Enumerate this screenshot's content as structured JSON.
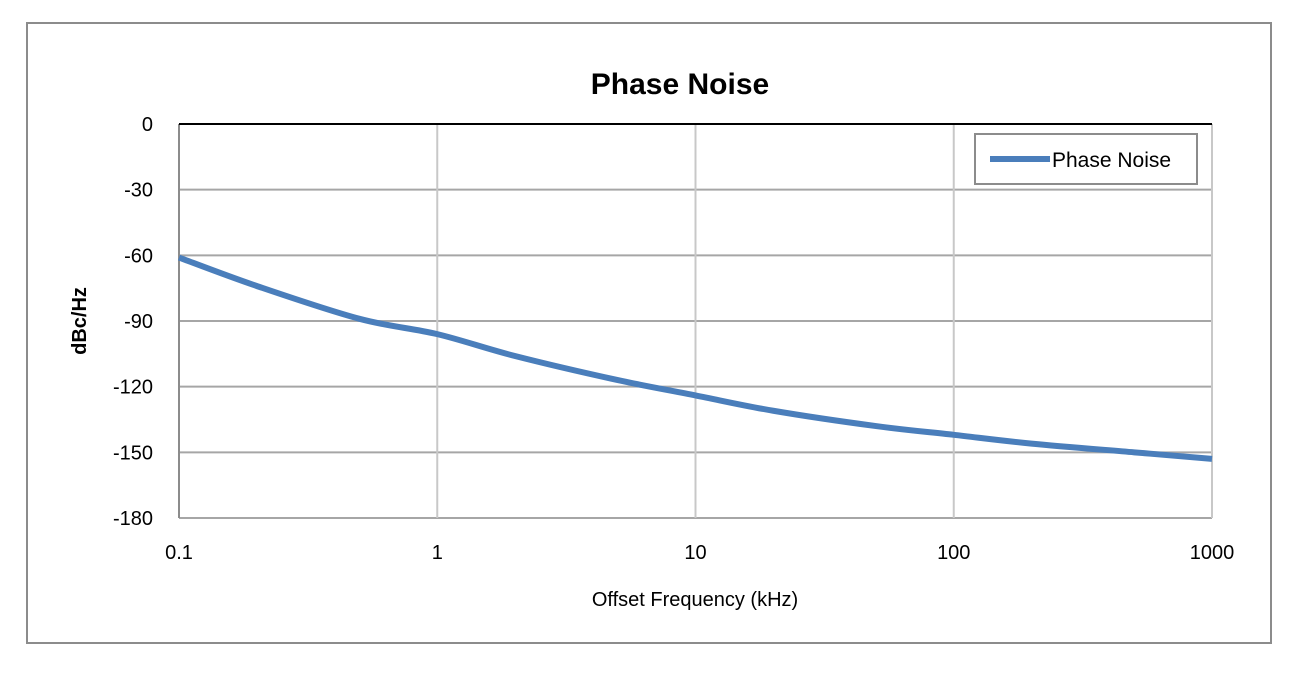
{
  "chart_data": {
    "type": "line",
    "title": "Phase Noise",
    "xlabel": "Offset Frequency (kHz)",
    "ylabel": "dBc/Hz",
    "x_scale": "log",
    "xlim": [
      0.1,
      1000
    ],
    "ylim": [
      -180,
      0
    ],
    "x_ticks": [
      "0.1",
      "1",
      "10",
      "100",
      "1000"
    ],
    "y_ticks": [
      "0",
      "-30",
      "-60",
      "-90",
      "-120",
      "-150",
      "-180"
    ],
    "grid": true,
    "legend_position": "top-right",
    "series": [
      {
        "name": "Phase Noise",
        "color": "#4a7ebb",
        "x": [
          0.1,
          0.2,
          0.5,
          1,
          2,
          5,
          10,
          20,
          50,
          100,
          200,
          500,
          1000
        ],
        "y": [
          -61,
          -74,
          -89,
          -96,
          -106,
          -117,
          -124,
          -131,
          -138,
          -142,
          -146,
          -150,
          -153
        ]
      }
    ]
  }
}
